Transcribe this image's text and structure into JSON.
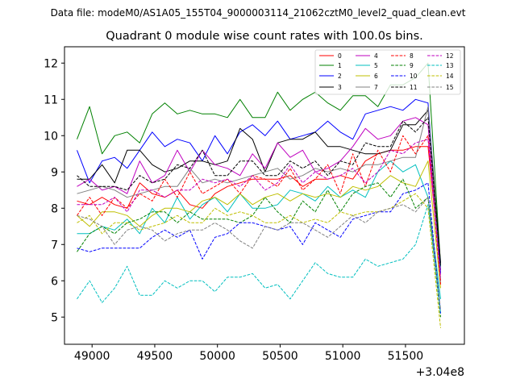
{
  "chart_data": {
    "type": "line",
    "suptitle": "Data file: modeM0/AS1A05_155T04_9000003114_21062cztM0_level2_quad_clean.evt",
    "title": "Quadrant 0 module wise count rates with 100.0s bins.",
    "xlabel": "",
    "ylabel": "",
    "x_offset_label": "+3.04e8",
    "xlim": [
      48780,
      51970
    ],
    "ylim": [
      4.25,
      12.45
    ],
    "x_ticks": [
      49000,
      49500,
      50000,
      50500,
      51000,
      51500
    ],
    "x_tick_labels": [
      "49000",
      "49500",
      "50000",
      "50500",
      "51000",
      "51500"
    ],
    "y_ticks": [
      5,
      6,
      7,
      8,
      9,
      10,
      11,
      12
    ],
    "y_tick_labels": [
      "5",
      "6",
      "7",
      "8",
      "9",
      "10",
      "11",
      "12"
    ],
    "grid": false,
    "legend_position": "top-right",
    "x": [
      48880,
      48980,
      49080,
      49180,
      49280,
      49380,
      49480,
      49580,
      49680,
      49780,
      49880,
      49980,
      50080,
      50180,
      50280,
      50380,
      50480,
      50580,
      50680,
      50780,
      50880,
      50980,
      51080,
      51180,
      51280,
      51380,
      51480,
      51580,
      51680,
      51780
    ],
    "series": [
      {
        "name": "0",
        "color": "#ff0000",
        "dash": "solid",
        "values": [
          8.2,
          8.1,
          8.3,
          8.1,
          8.0,
          8.7,
          8.4,
          8.3,
          8.5,
          8.1,
          8.0,
          8.4,
          8.6,
          8.7,
          8.8,
          8.8,
          8.8,
          8.9,
          8.6,
          8.8,
          8.8,
          8.9,
          8.8,
          9.3,
          9.5,
          9.6,
          9.6,
          9.7,
          9.7,
          6.3
        ]
      },
      {
        "name": "1",
        "color": "#008000",
        "dash": "solid",
        "values": [
          9.9,
          10.8,
          9.5,
          10.0,
          10.1,
          9.8,
          10.6,
          10.9,
          10.6,
          10.7,
          10.6,
          10.6,
          10.5,
          11.0,
          10.5,
          10.5,
          11.2,
          10.7,
          11.0,
          11.2,
          10.9,
          10.7,
          11.1,
          11.1,
          10.8,
          11.4,
          11.4,
          11.6,
          12.0,
          6.4
        ]
      },
      {
        "name": "2",
        "color": "#0000ff",
        "dash": "solid",
        "values": [
          9.6,
          8.7,
          9.3,
          9.4,
          9.1,
          9.6,
          10.1,
          9.7,
          9.9,
          9.8,
          9.3,
          10.0,
          9.5,
          10.1,
          10.3,
          10.0,
          10.4,
          9.9,
          10.0,
          10.1,
          10.4,
          10.1,
          9.9,
          10.6,
          10.7,
          10.8,
          10.7,
          11.0,
          10.9,
          6.2
        ]
      },
      {
        "name": "3",
        "color": "#000000",
        "dash": "solid",
        "values": [
          8.8,
          8.8,
          9.2,
          8.7,
          9.6,
          9.6,
          9.2,
          9.0,
          9.1,
          9.3,
          9.3,
          9.2,
          9.3,
          10.2,
          9.9,
          9.0,
          9.8,
          9.9,
          9.9,
          10.1,
          9.7,
          9.7,
          9.6,
          9.5,
          9.5,
          9.6,
          10.3,
          10.3,
          10.7,
          6.5
        ]
      },
      {
        "name": "4",
        "color": "#bf00bf",
        "dash": "solid",
        "values": [
          8.6,
          8.8,
          8.5,
          8.6,
          8.4,
          9.3,
          8.7,
          8.9,
          9.6,
          9.0,
          9.6,
          9.2,
          9.1,
          8.9,
          9.5,
          9.1,
          9.8,
          9.4,
          9.6,
          9.0,
          9.1,
          9.3,
          9.7,
          10.2,
          9.9,
          10.0,
          10.4,
          10.5,
          10.3,
          6.0
        ]
      },
      {
        "name": "5",
        "color": "#00bfbf",
        "dash": "solid",
        "values": [
          7.3,
          7.3,
          7.5,
          7.4,
          7.7,
          7.3,
          8.0,
          7.6,
          8.3,
          7.7,
          8.1,
          8.3,
          7.9,
          8.4,
          8.0,
          8.0,
          8.1,
          8.5,
          8.4,
          8.2,
          8.6,
          8.3,
          8.5,
          8.3,
          9.0,
          9.3,
          9.0,
          9.2,
          8.3,
          5.5
        ]
      },
      {
        "name": "6",
        "color": "#bfbf00",
        "dash": "solid",
        "values": [
          7.8,
          7.5,
          7.9,
          7.9,
          7.8,
          7.5,
          7.8,
          8.0,
          8.0,
          7.9,
          8.2,
          8.3,
          8.1,
          8.4,
          8.1,
          8.3,
          8.4,
          8.2,
          8.4,
          8.3,
          8.4,
          8.3,
          8.6,
          8.5,
          8.6,
          8.9,
          8.7,
          8.6,
          9.3,
          5.8
        ]
      },
      {
        "name": "7",
        "color": "#808080",
        "dash": "solid",
        "values": [
          8.4,
          8.5,
          8.6,
          8.5,
          8.3,
          8.4,
          8.5,
          8.6,
          8.6,
          9.1,
          8.7,
          8.8,
          8.7,
          8.8,
          8.9,
          9.0,
          9.1,
          8.8,
          8.9,
          9.1,
          9.0,
          9.1,
          9.0,
          9.2,
          9.2,
          9.3,
          9.4,
          9.4,
          10.8,
          5.9
        ]
      },
      {
        "name": "8",
        "color": "#ff0000",
        "dash": "dashed",
        "values": [
          7.8,
          8.3,
          7.8,
          8.3,
          8.0,
          8.4,
          8.2,
          8.8,
          8.3,
          9.0,
          8.4,
          8.6,
          8.8,
          8.4,
          8.9,
          8.8,
          8.6,
          9.1,
          8.5,
          8.8,
          9.2,
          8.4,
          9.5,
          8.6,
          9.6,
          9.0,
          10.0,
          9.5,
          10.0,
          5.9
        ]
      },
      {
        "name": "9",
        "color": "#008000",
        "dash": "dashed",
        "values": [
          6.8,
          7.3,
          7.5,
          7.3,
          7.6,
          7.7,
          7.9,
          7.9,
          7.6,
          7.9,
          7.7,
          7.7,
          7.7,
          7.6,
          7.8,
          8.3,
          7.9,
          7.6,
          8.2,
          7.9,
          8.5,
          7.9,
          8.4,
          8.6,
          8.7,
          8.3,
          8.8,
          8.0,
          8.3,
          5.0
        ]
      },
      {
        "name": "10",
        "color": "#0000ff",
        "dash": "dashed",
        "values": [
          6.9,
          6.8,
          6.9,
          6.9,
          6.9,
          6.9,
          7.2,
          7.4,
          7.2,
          7.4,
          6.6,
          7.2,
          7.3,
          7.6,
          7.6,
          7.5,
          7.4,
          7.5,
          7.0,
          7.6,
          7.4,
          7.2,
          7.7,
          7.8,
          7.9,
          7.9,
          8.4,
          8.5,
          8.7,
          5.1
        ]
      },
      {
        "name": "11",
        "color": "#000000",
        "dash": "dashed",
        "values": [
          8.9,
          8.6,
          8.6,
          8.6,
          8.5,
          8.9,
          8.7,
          8.8,
          9.2,
          9.1,
          9.6,
          8.9,
          8.9,
          9.3,
          9.3,
          8.9,
          8.9,
          9.3,
          9.1,
          9.3,
          8.9,
          9.3,
          9.2,
          9.8,
          9.7,
          9.7,
          10.4,
          10.1,
          10.5,
          6.4
        ]
      },
      {
        "name": "12",
        "color": "#bf00bf",
        "dash": "dashed",
        "values": [
          8.1,
          8.1,
          8.1,
          8.3,
          7.9,
          8.5,
          8.5,
          8.3,
          8.5,
          8.5,
          8.8,
          8.7,
          8.8,
          8.6,
          8.9,
          8.5,
          8.7,
          9.2,
          8.7,
          9.0,
          8.8,
          8.9,
          9.1,
          8.7,
          9.0,
          9.6,
          9.5,
          9.8,
          9.9,
          6.1
        ]
      },
      {
        "name": "13",
        "color": "#00bfbf",
        "dash": "dashed",
        "values": [
          5.5,
          6.0,
          5.4,
          5.8,
          6.4,
          5.6,
          5.6,
          6.0,
          5.8,
          6.0,
          6.0,
          5.7,
          6.1,
          6.1,
          6.2,
          5.8,
          5.9,
          5.5,
          6.0,
          6.5,
          6.2,
          6.1,
          6.1,
          6.6,
          6.4,
          6.5,
          6.6,
          7.0,
          8.1,
          5.1
        ]
      },
      {
        "name": "14",
        "color": "#bfbf00",
        "dash": "dashed",
        "values": [
          7.6,
          7.8,
          7.3,
          7.6,
          7.6,
          7.4,
          7.5,
          7.6,
          7.8,
          7.6,
          7.6,
          8.0,
          7.8,
          7.9,
          7.8,
          7.6,
          7.6,
          7.8,
          7.6,
          7.7,
          7.6,
          7.9,
          7.8,
          7.9,
          7.9,
          8.0,
          8.2,
          8.4,
          8.0,
          4.7
        ]
      },
      {
        "name": "15",
        "color": "#808080",
        "dash": "dashed",
        "values": [
          7.8,
          7.7,
          7.5,
          7.0,
          7.4,
          7.5,
          7.4,
          7.1,
          7.3,
          7.4,
          7.4,
          7.6,
          7.4,
          7.1,
          6.9,
          7.5,
          7.4,
          7.6,
          7.6,
          7.4,
          7.2,
          7.5,
          7.8,
          7.6,
          7.9,
          8.0,
          8.1,
          7.9,
          8.3,
          5.2
        ]
      }
    ]
  }
}
